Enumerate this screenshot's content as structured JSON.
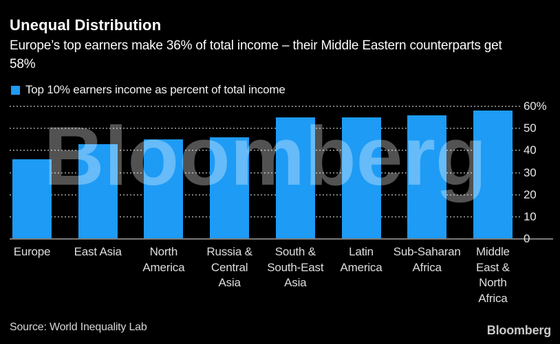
{
  "header": {
    "title": "Unequal Distribution",
    "subtitle": "Europe’s top earners make 36% of total income – their Middle Eastern counterparts get 58%"
  },
  "legend": {
    "label": "Top 10% earners income as percent of total income",
    "swatch_color": "#1e9bf5"
  },
  "chart_data": {
    "type": "bar",
    "title": "Unequal Distribution",
    "series_label": "Top 10% earners income as percent of total income",
    "categories": [
      "Europe",
      "East Asia",
      "North America",
      "Russia & Central Asia",
      "South & South-East Asia",
      "Latin America",
      "Sub-Saharan Africa",
      "Middle East & North Africa"
    ],
    "category_label_lines": [
      [
        "Europe"
      ],
      [
        "East Asia"
      ],
      [
        "North",
        "America"
      ],
      [
        "Russia &",
        "Central",
        "Asia"
      ],
      [
        "South &",
        "South-East",
        "Asia"
      ],
      [
        "Latin",
        "America"
      ],
      [
        "Sub-Saharan",
        "Africa"
      ],
      [
        "Middle",
        "East &",
        "North",
        "Africa"
      ]
    ],
    "values": [
      36,
      43,
      45,
      46,
      55,
      55,
      56,
      58
    ],
    "ylabel": "",
    "xlabel": "",
    "ylim": [
      0,
      60
    ],
    "yticks": [
      0,
      10,
      20,
      30,
      40,
      50,
      60
    ],
    "ytick_labels": [
      "0",
      "10",
      "20",
      "30",
      "40",
      "50",
      "60%"
    ],
    "axis_side": "right",
    "grid": "horizontal-dotted",
    "bar_color": "#1e9bf5",
    "gridline_color": "#9a9a9a",
    "axis_line_color": "#7a7a7a"
  },
  "watermark": "Bloomberg",
  "footer": {
    "source": "Source: World Inequality Lab",
    "logo": "Bloomberg"
  }
}
